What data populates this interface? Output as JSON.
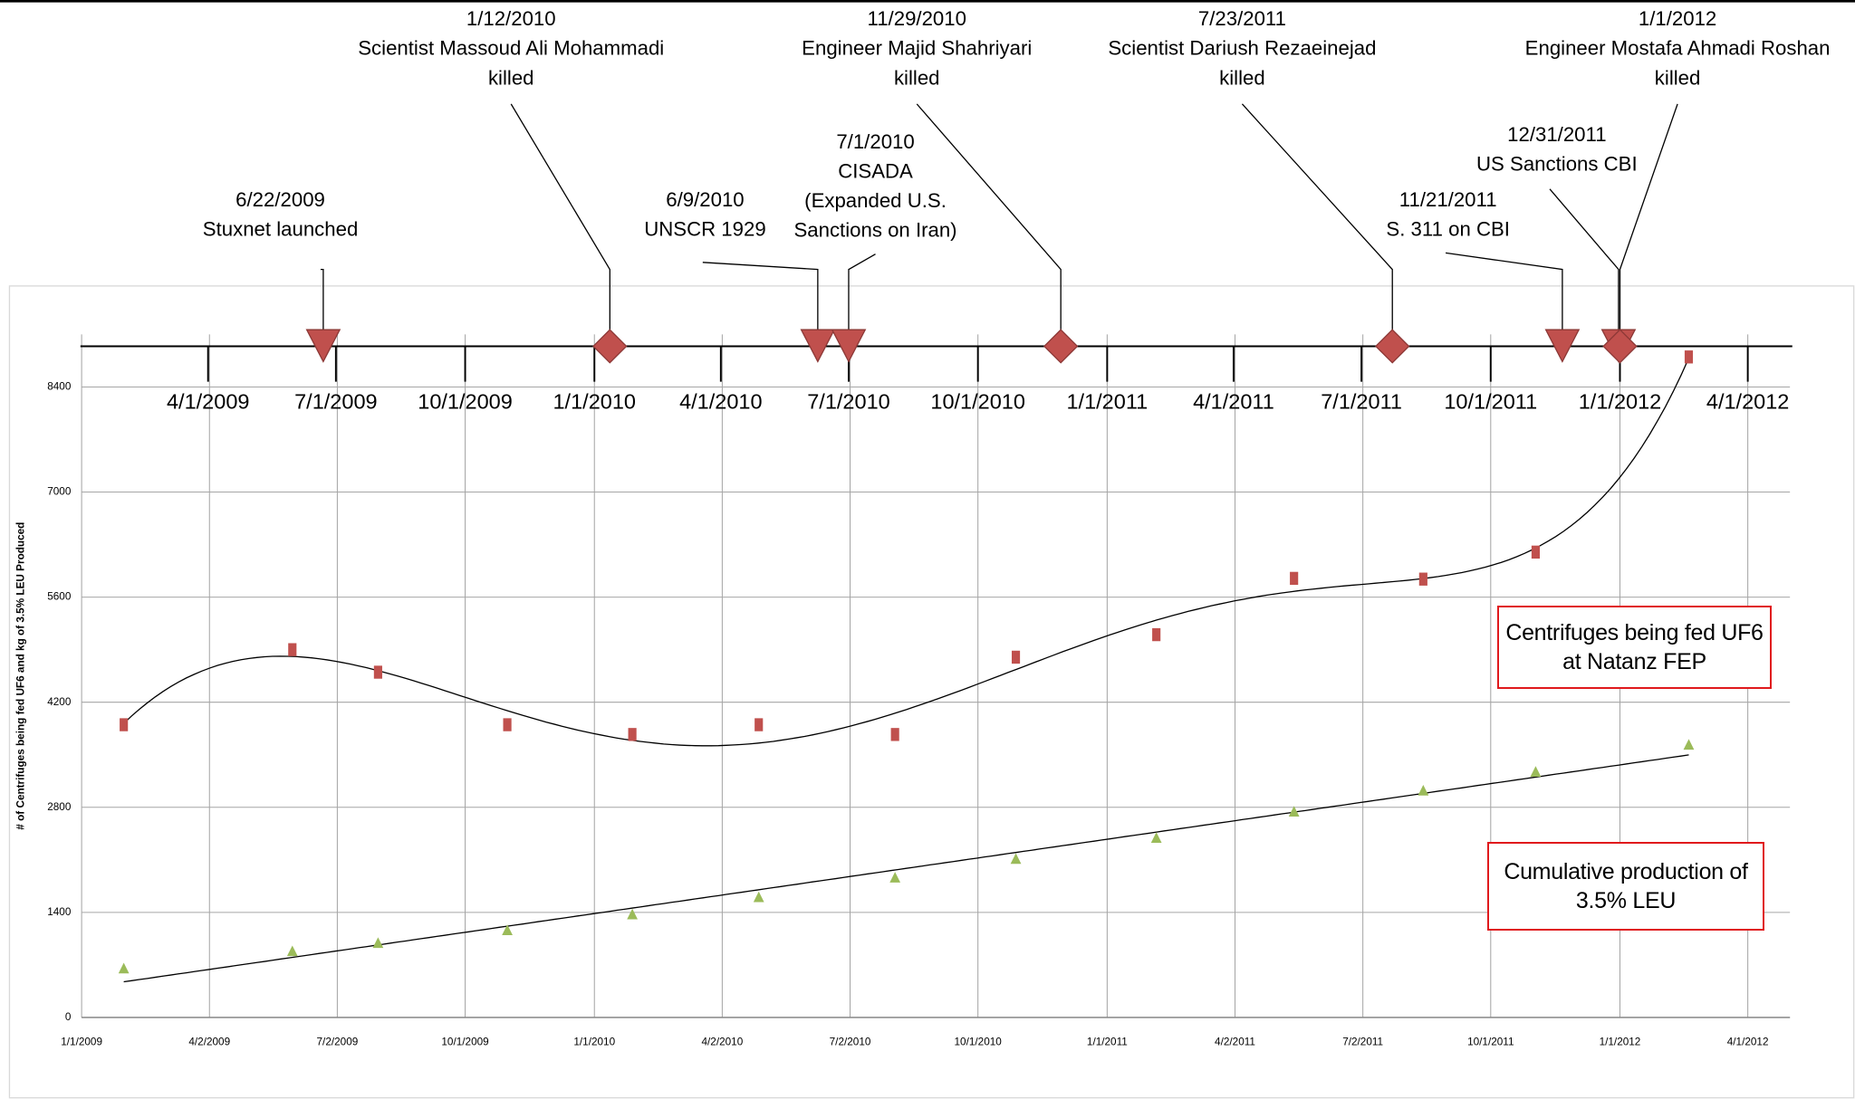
{
  "timeline": {
    "xticks": [
      "4/1/2009",
      "7/1/2009",
      "10/1/2009",
      "1/1/2010",
      "4/1/2010",
      "7/1/2010",
      "10/1/2010",
      "1/1/2011",
      "4/1/2011",
      "7/1/2011",
      "10/1/2011",
      "1/1/2012",
      "4/1/2012"
    ],
    "events": [
      {
        "date": "6/22/2009",
        "lines": [
          "Stuxnet launched"
        ],
        "marker": "triangle"
      },
      {
        "date": "1/12/2010",
        "lines": [
          "Scientist Massoud Ali Mohammadi",
          "killed"
        ],
        "marker": "diamond"
      },
      {
        "date": "6/9/2010",
        "lines": [
          "UNSCR 1929"
        ],
        "marker": "triangle"
      },
      {
        "date": "7/1/2010",
        "lines": [
          "CISADA",
          "(Expanded U.S.",
          "Sanctions on Iran)"
        ],
        "marker": "triangle"
      },
      {
        "date": "11/29/2010",
        "lines": [
          "Engineer Majid Shahriyari",
          "killed"
        ],
        "marker": "diamond"
      },
      {
        "date": "7/23/2011",
        "lines": [
          "Scientist Dariush Rezaeinejad",
          "killed"
        ],
        "marker": "diamond"
      },
      {
        "date": "11/21/2011",
        "lines": [
          "S. 311 on CBI"
        ],
        "marker": "triangle"
      },
      {
        "date": "12/31/2011",
        "lines": [
          "US Sanctions CBI"
        ],
        "marker": "triangle"
      },
      {
        "date": "1/1/2012",
        "lines": [
          "Engineer Mostafa Ahmadi Roshan",
          "killed"
        ],
        "marker": "diamond"
      }
    ],
    "color": "#c0504d"
  },
  "chart_data": {
    "type": "scatter",
    "y_label": "# of Centrifuges being fed UF6 and kg of 3.5% LEU Produced",
    "xlim": [
      "1/1/2009",
      "5/1/2012"
    ],
    "xticks": [
      "1/1/2009",
      "4/2/2009",
      "7/2/2009",
      "10/1/2009",
      "1/1/2010",
      "4/2/2010",
      "7/2/2010",
      "10/1/2010",
      "1/1/2011",
      "4/2/2011",
      "7/2/2011",
      "10/1/2011",
      "1/1/2012",
      "4/1/2012"
    ],
    "ylim": [
      0,
      9100
    ],
    "yticks": [
      0,
      1400,
      2800,
      4200,
      5600,
      7000,
      8400
    ],
    "grid": true,
    "series": [
      {
        "name": "Centrifuges being fed UF6 at Natanz FEP",
        "color": "#c0504d",
        "marker": "square",
        "trendline": "polynomial",
        "trendline_order": 6,
        "x": [
          "1/31/2009",
          "5/31/2009",
          "7/31/2009",
          "10/31/2009",
          "1/28/2010",
          "4/28/2010",
          "8/3/2010",
          "10/28/2010",
          "2/5/2011",
          "5/14/2011",
          "8/14/2011",
          "11/2/2011",
          "2/19/2012"
        ],
        "values": [
          3900,
          4900,
          4600,
          3900,
          3770,
          3900,
          3770,
          4800,
          5100,
          5850,
          5840,
          6200,
          8800
        ]
      },
      {
        "name": "Cumulative production of 3.5% LEU",
        "color": "#9bbb59",
        "marker": "triangle",
        "trendline": "linear",
        "x": [
          "1/31/2009",
          "5/31/2009",
          "7/31/2009",
          "10/31/2009",
          "1/28/2010",
          "4/28/2010",
          "8/3/2010",
          "10/28/2010",
          "2/5/2011",
          "5/14/2011",
          "8/14/2011",
          "11/2/2011",
          "2/19/2012"
        ],
        "values": [
          650,
          880,
          990,
          1160,
          1370,
          1600,
          1860,
          2110,
          2390,
          2740,
          3020,
          3270,
          3630
        ]
      }
    ]
  }
}
